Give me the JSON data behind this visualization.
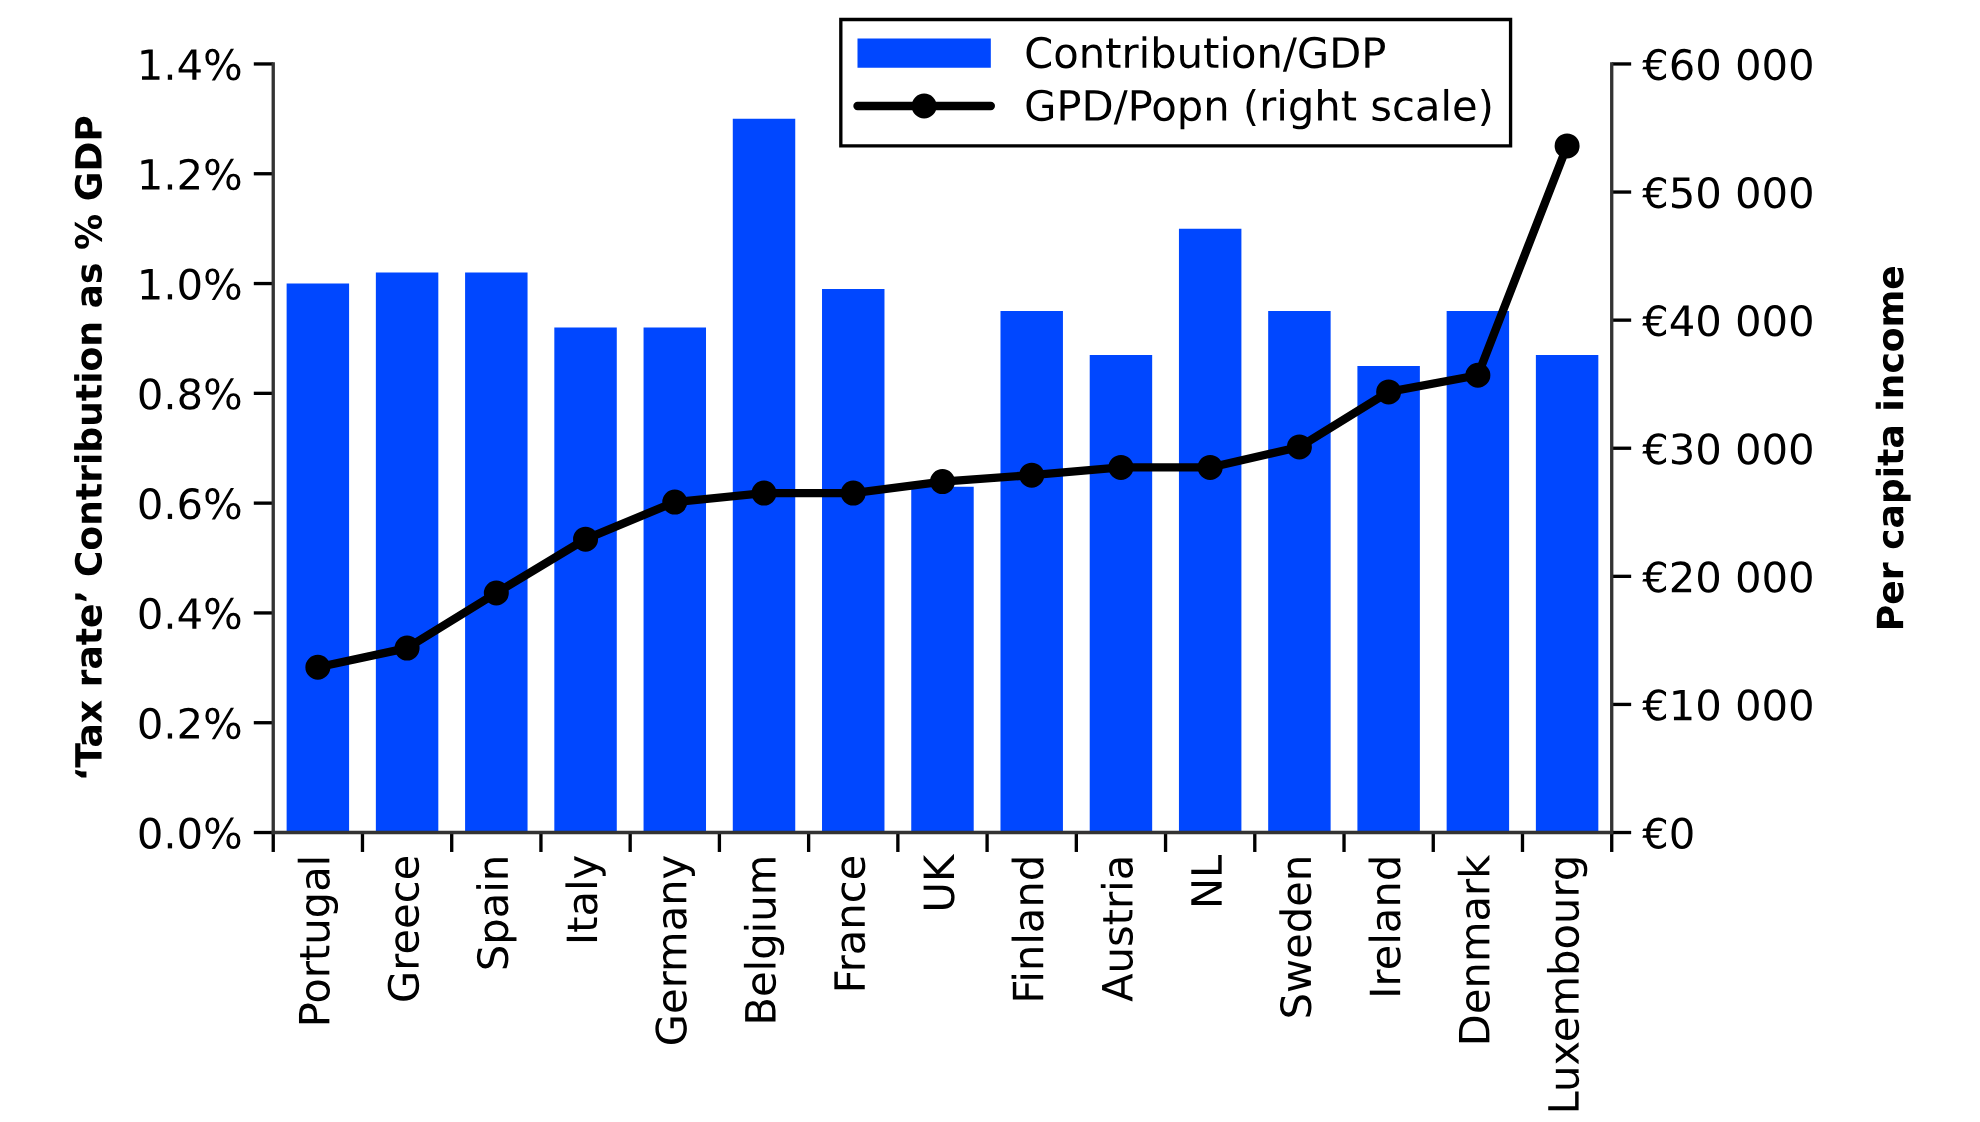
{
  "chart_data": {
    "type": "bar",
    "ylabel": "‘Tax rate’ Contribution as % GDP",
    "y2label": "Per capita income",
    "categories": [
      "Portugal",
      "Greece",
      "Spain",
      "Italy",
      "Germany",
      "Belgium",
      "France",
      "UK",
      "Finland",
      "Austria",
      "NL",
      "Sweden",
      "Ireland",
      "Denmark",
      "Luxembourg"
    ],
    "series": [
      {
        "name": "Contribution/GDP",
        "color": "#0047ff",
        "values": [
          1.0,
          1.02,
          1.02,
          0.92,
          0.92,
          1.3,
          0.99,
          0.63,
          0.95,
          0.87,
          1.1,
          0.95,
          0.85,
          0.95,
          0.87
        ]
      },
      {
        "name": "GPD/Popn (right scale)",
        "type": "line",
        "axis": "y2",
        "color": "#000000",
        "values": [
          12900,
          14400,
          18700,
          22900,
          25800,
          26500,
          26500,
          27400,
          27900,
          28500,
          28500,
          30100,
          34400,
          35700,
          53600
        ]
      }
    ],
    "ylim": [
      0,
      1.4
    ],
    "yticks": [
      {
        "value": 0,
        "label": "0.0%"
      },
      {
        "value": 0.2,
        "label": "0.2%"
      },
      {
        "value": 0.4,
        "label": "0.4%"
      },
      {
        "value": 0.6,
        "label": "0.6%"
      },
      {
        "value": 0.8,
        "label": "0.8%"
      },
      {
        "value": 1.0,
        "label": "1.0%"
      },
      {
        "value": 1.2,
        "label": "1.2%"
      },
      {
        "value": 1.4,
        "label": "1.4%"
      }
    ],
    "y2lim": [
      0,
      60000
    ],
    "y2ticks": [
      {
        "value": 0,
        "label": "€0"
      },
      {
        "value": 10000,
        "label": "€10 000"
      },
      {
        "value": 20000,
        "label": "€20 000"
      },
      {
        "value": 30000,
        "label": "€30 000"
      },
      {
        "value": 40000,
        "label": "€40 000"
      },
      {
        "value": 50000,
        "label": "€50 000"
      },
      {
        "value": 60000,
        "label": "€60 000"
      }
    ],
    "legend": "top right",
    "marker": "circle",
    "line_style": "solid"
  }
}
